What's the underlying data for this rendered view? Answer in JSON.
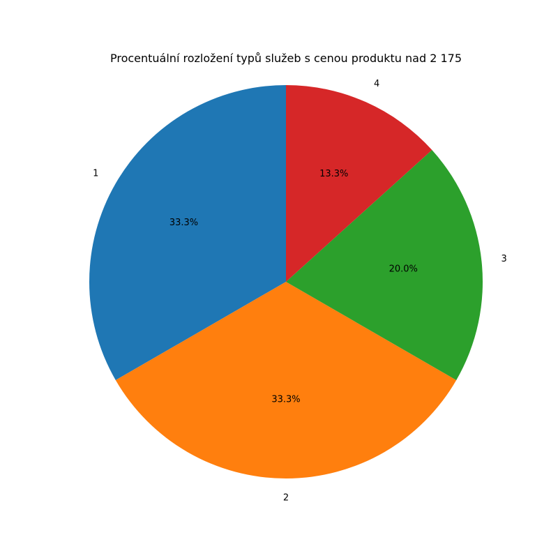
{
  "chart_data": {
    "type": "pie",
    "title": "Procentuální rozložení typů služeb s cenou produktu nad 2 175",
    "categories": [
      "1",
      "2",
      "3",
      "4"
    ],
    "values": [
      33.3,
      33.3,
      20.0,
      13.3
    ],
    "percent_labels": [
      "33.3%",
      "33.3%",
      "20.0%",
      "13.3%"
    ],
    "colors": [
      "#1f77b4",
      "#ff7f0e",
      "#2ca02c",
      "#d62728"
    ],
    "start_angle_deg": 90,
    "direction": "counterclockwise",
    "legend": "none"
  }
}
